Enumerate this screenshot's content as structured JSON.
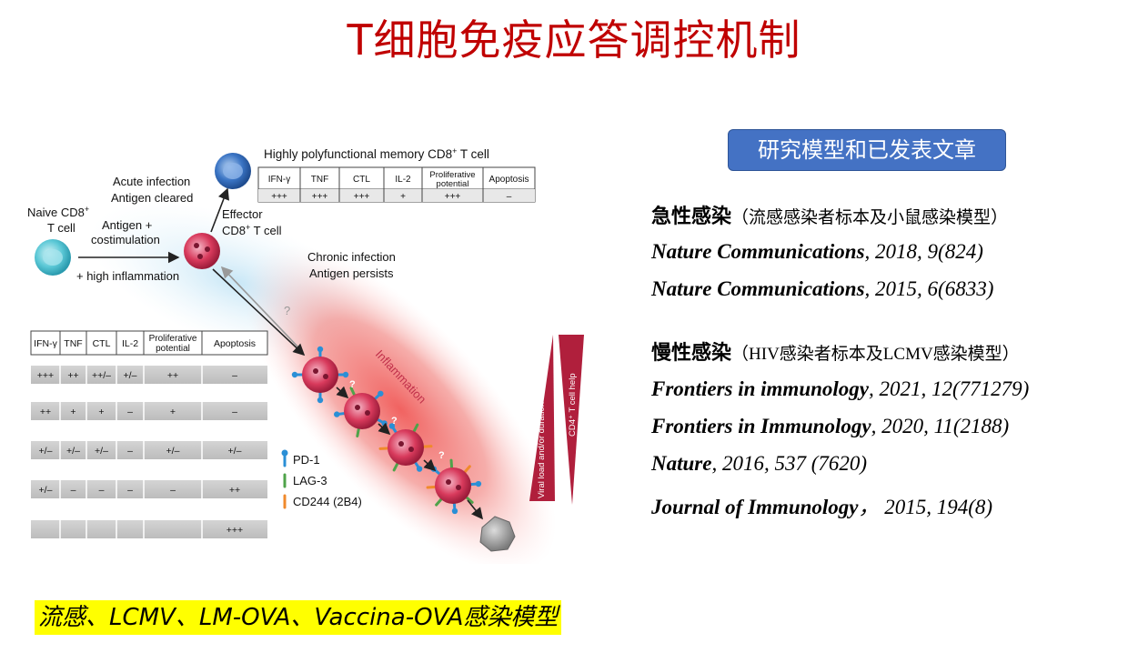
{
  "title": "T细胞免疫应答调控机制",
  "pill_label": "研究模型和已发表文章",
  "acute": {
    "heading": "急性感染",
    "sub": "（流感感染者标本及小鼠感染模型）",
    "refs": [
      {
        "journal": "Nature Communications",
        "detail": ", 2018, 9(824)"
      },
      {
        "journal": "Nature Communications",
        "detail": ", 2015, 6(6833)"
      }
    ]
  },
  "chronic": {
    "heading": "慢性感染",
    "sub": "（HIV感染者标本及LCMV感染模型）",
    "refs": [
      {
        "journal": "Frontiers in immunology",
        "detail": ", 2021, 12(771279)"
      },
      {
        "journal": "Frontiers in Immunology",
        "detail": ", 2020, 11(2188)"
      },
      {
        "journal": "Nature",
        "detail": ", 2016, 537 (7620)"
      },
      {
        "journal": "Journal of Immunology",
        "detail": "， 2015, 194(8)"
      }
    ]
  },
  "bottom_caption": "流感、LCMV、LM-OVA、Vaccina-OVA感染模型",
  "diagram": {
    "naive": "Naive CD8",
    "naive_sup": "+",
    "naive_line2": "T cell",
    "antigen": "Antigen +",
    "costim": "costimulation",
    "high_inflam": "+ high inflammation",
    "acute_line1": "Acute infection",
    "acute_line2": "Antigen cleared",
    "effector_line1": "Effector",
    "effector_line2a": "CD8",
    "effector_sup": "+",
    "effector_line2b": " T cell",
    "memory_title": "Highly polyfunctional memory CD8",
    "memory_sup": "+",
    "memory_title2": " T cell",
    "chronic_line1": "Chronic infection",
    "chronic_line2": "Antigen persists",
    "inflammation": "Inflammation",
    "viral_load": "Viral load and/or duration",
    "cd4_help": "CD4⁺ T cell help",
    "question": "?",
    "top_table": {
      "headers": [
        "IFN-γ",
        "TNF",
        "CTL",
        "IL-2",
        "Proliferative",
        "Apoptosis"
      ],
      "header_line2": "potential",
      "values": [
        "+++",
        "+++",
        "+++",
        "+",
        "+++",
        "–"
      ]
    },
    "left_table": {
      "headers": [
        "IFN-γ",
        "TNF",
        "CTL",
        "IL-2",
        "Proliferative",
        "Apoptosis"
      ],
      "header_line2": "potential",
      "rows": [
        [
          "+++",
          "++",
          "++/–",
          "+/–",
          "++",
          "–"
        ],
        [
          "++",
          "+",
          "+",
          "–",
          "+",
          "–"
        ],
        [
          "+/–",
          "+/–",
          "+/–",
          "–",
          "+/–",
          "+/–"
        ],
        [
          "+/–",
          "–",
          "–",
          "–",
          "–",
          "++"
        ],
        [
          "",
          "",
          "",
          "",
          "",
          "+++"
        ]
      ]
    },
    "legend": [
      {
        "label": "PD-1",
        "color": "#2a8fd6"
      },
      {
        "label": "LAG-3",
        "color": "#4fa34a"
      },
      {
        "label": "CD244 (2B4)",
        "color": "#f08a2c"
      }
    ]
  },
  "colors": {
    "title": "#c00000",
    "pill": "#4472c4",
    "highlight": "#ffff00",
    "naive_cell": "#5bc8d6",
    "effector_cell": "#d83a5c",
    "memory_cell": "#3a74c4",
    "dead_cell": "#909090",
    "triangle": "#b01f3c"
  }
}
